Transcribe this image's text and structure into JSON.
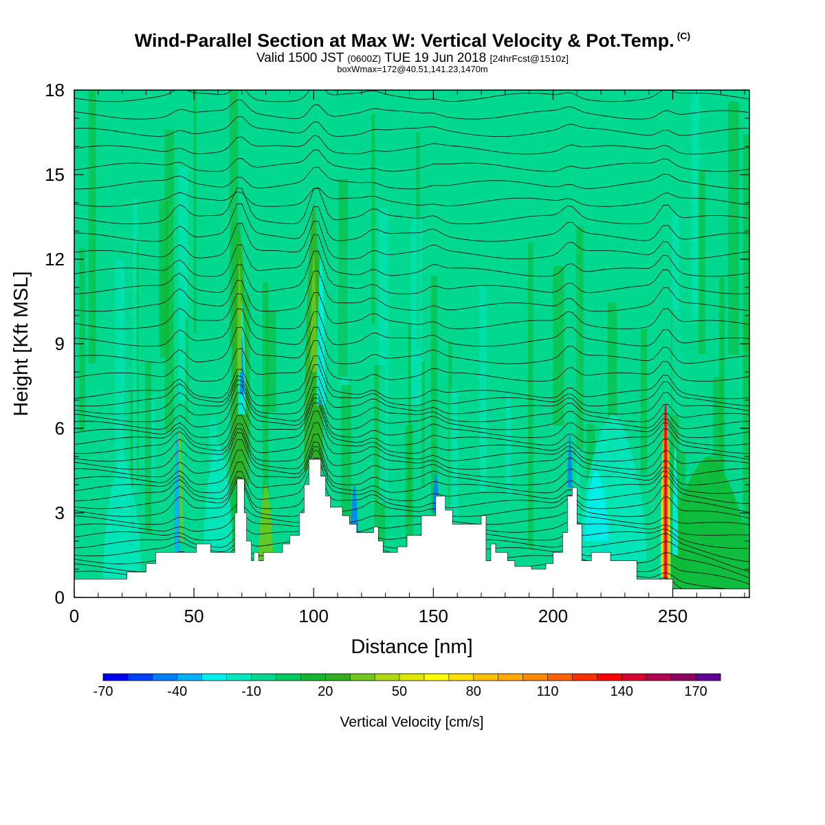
{
  "title": "Wind-Parallel Section at Max W: Vertical Velocity & Pot.Temp.",
  "title_mark": "(C)",
  "subtitle_main": "Valid 1500 JST ",
  "subtitle_z": "(0600Z)",
  "subtitle_date": " TUE 19 Jun 2018 ",
  "subtitle_fcst": "[24hrFcst@1510z]",
  "subtitle2": "boxWmax=172@40.51,141.23,1470m",
  "chart_data": {
    "type": "heatmap",
    "xlabel": "Distance [nm]",
    "ylabel": "Height [Kft MSL]",
    "xlim": [
      0,
      282
    ],
    "ylim": [
      0,
      18
    ],
    "xticks": [
      0,
      50,
      100,
      150,
      200,
      250
    ],
    "yticks": [
      0,
      3,
      6,
      9,
      12,
      15,
      18
    ],
    "background_value": -5,
    "colorbar": {
      "label": "Vertical Velocity [cm/s]",
      "tick_labels": [
        "-70",
        "-40",
        "-10",
        "20",
        "50",
        "80",
        "110",
        "140",
        "170"
      ],
      "levels": [
        -70,
        -60,
        -50,
        -40,
        -30,
        -20,
        -10,
        0,
        10,
        20,
        30,
        40,
        50,
        60,
        70,
        80,
        90,
        100,
        110,
        120,
        130,
        140,
        150,
        160,
        170,
        180
      ],
      "colors": [
        "#0000f0",
        "#0040f8",
        "#0080f8",
        "#00b0f8",
        "#00f0f0",
        "#00e8c0",
        "#00d890",
        "#00c860",
        "#10b830",
        "#30b020",
        "#70c818",
        "#b0d810",
        "#e0e800",
        "#ffff00",
        "#ffe000",
        "#ffc000",
        "#ffa800",
        "#ff8800",
        "#ff6000",
        "#ff3000",
        "#ff0000",
        "#d80030",
        "#b00050",
        "#900060",
        "#600090"
      ]
    },
    "terrain_kft": [
      [
        0,
        0.65
      ],
      [
        21,
        0.65
      ],
      [
        22,
        0.9
      ],
      [
        29,
        0.9
      ],
      [
        30,
        1.2
      ],
      [
        33,
        1.2
      ],
      [
        34,
        1.6
      ],
      [
        50,
        1.6
      ],
      [
        51,
        1.9
      ],
      [
        56,
        1.9
      ],
      [
        57,
        1.6
      ],
      [
        66,
        1.6
      ],
      [
        67,
        3.0
      ],
      [
        68,
        4.2
      ],
      [
        70,
        4.2
      ],
      [
        71,
        3.0
      ],
      [
        72,
        2.0
      ],
      [
        74,
        1.3
      ],
      [
        75,
        1.6
      ],
      [
        77,
        1.3
      ],
      [
        79,
        1.6
      ],
      [
        85,
        1.6
      ],
      [
        87,
        1.9
      ],
      [
        90,
        2.2
      ],
      [
        94,
        3.0
      ],
      [
        96,
        4.0
      ],
      [
        98,
        4.9
      ],
      [
        101,
        4.9
      ],
      [
        103,
        4.3
      ],
      [
        105,
        3.6
      ],
      [
        107,
        3.2
      ],
      [
        112,
        2.9
      ],
      [
        115,
        2.6
      ],
      [
        118,
        2.3
      ],
      [
        125,
        2.5
      ],
      [
        127,
        2.0
      ],
      [
        129,
        1.6
      ],
      [
        135,
        1.8
      ],
      [
        139,
        2.2
      ],
      [
        145,
        2.9
      ],
      [
        151,
        3.6
      ],
      [
        155,
        3.1
      ],
      [
        158,
        2.6
      ],
      [
        165,
        2.6
      ],
      [
        170,
        2.9
      ],
      [
        172,
        1.3
      ],
      [
        174,
        1.9
      ],
      [
        176,
        1.6
      ],
      [
        181,
        1.3
      ],
      [
        184,
        1.1
      ],
      [
        191,
        1.0
      ],
      [
        197,
        1.2
      ],
      [
        200,
        1.6
      ],
      [
        204,
        2.3
      ],
      [
        206,
        3.6
      ],
      [
        208,
        3.9
      ],
      [
        210,
        2.6
      ],
      [
        212,
        1.3
      ],
      [
        216,
        1.6
      ],
      [
        220,
        1.6
      ],
      [
        224,
        1.3
      ],
      [
        231,
        1.3
      ],
      [
        235,
        0.65
      ],
      [
        248,
        0.65
      ],
      [
        250,
        0.3
      ],
      [
        282,
        0.3
      ]
    ],
    "updraft_cores": [
      {
        "x": 70,
        "z": 8.2,
        "w": -60
      },
      {
        "x": 103,
        "z": 9.3,
        "w": -30
      },
      {
        "x": 247,
        "z": 3.8,
        "w": 172
      },
      {
        "x": 100,
        "z": 11.8,
        "w": 50
      },
      {
        "x": 69,
        "z": 11.5,
        "w": 40
      }
    ],
    "theta_contours": "potential temperature isentropes (black lines)"
  }
}
